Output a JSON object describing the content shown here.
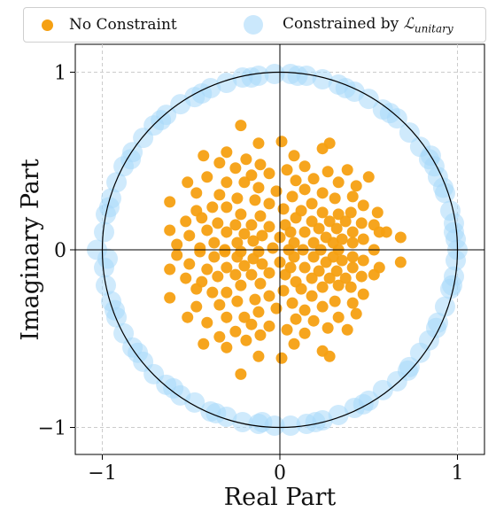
{
  "legend": {
    "items": [
      {
        "label": "No Constraint",
        "color": "#f5a012"
      },
      {
        "label_main": "Constrained by ",
        "label_script": "ℒ",
        "label_sub": "unitary",
        "color": "#a8d8fa"
      }
    ]
  },
  "chart_data": {
    "type": "scatter",
    "xlabel": "Real Part",
    "ylabel": "Imaginary Part",
    "xlim": [
      -1.15,
      1.15
    ],
    "ylim": [
      -1.15,
      1.15
    ],
    "xticks": [
      -1,
      0,
      1
    ],
    "yticks": [
      -1,
      0,
      1
    ],
    "xtick_labels": [
      "−1",
      "0",
      "1"
    ],
    "ytick_labels": [
      "−1",
      "0",
      "1"
    ],
    "grid": true,
    "legend_position": "top",
    "unit_circle": true,
    "series": [
      {
        "name": "No Constraint",
        "color": "#f5a012",
        "marker_size": "small",
        "points": [
          [
            -0.22,
            0.7
          ],
          [
            -0.12,
            0.6
          ],
          [
            0.01,
            0.61
          ],
          [
            0.28,
            0.6
          ],
          [
            0.24,
            0.57
          ],
          [
            0.08,
            0.53
          ],
          [
            -0.3,
            0.55
          ],
          [
            -0.43,
            0.53
          ],
          [
            -0.19,
            0.51
          ],
          [
            -0.11,
            0.48
          ],
          [
            -0.34,
            0.49
          ],
          [
            -0.25,
            0.46
          ],
          [
            0.14,
            0.47
          ],
          [
            0.27,
            0.44
          ],
          [
            0.38,
            0.45
          ],
          [
            0.04,
            0.45
          ],
          [
            -0.06,
            0.43
          ],
          [
            -0.16,
            0.42
          ],
          [
            -0.2,
            0.38
          ],
          [
            -0.41,
            0.41
          ],
          [
            -0.52,
            0.38
          ],
          [
            -0.3,
            0.38
          ],
          [
            0.09,
            0.39
          ],
          [
            0.19,
            0.4
          ],
          [
            0.33,
            0.38
          ],
          [
            0.5,
            0.41
          ],
          [
            0.43,
            0.36
          ],
          [
            -0.12,
            0.35
          ],
          [
            -0.02,
            0.33
          ],
          [
            0.14,
            0.34
          ],
          [
            0.24,
            0.32
          ],
          [
            -0.47,
            0.32
          ],
          [
            -0.34,
            0.31
          ],
          [
            -0.24,
            0.29
          ],
          [
            0.41,
            0.3
          ],
          [
            0.31,
            0.29
          ],
          [
            0.07,
            0.3
          ],
          [
            -0.14,
            0.28
          ],
          [
            -0.06,
            0.26
          ],
          [
            0.18,
            0.26
          ],
          [
            0.47,
            0.25
          ],
          [
            -0.62,
            0.27
          ],
          [
            -0.38,
            0.24
          ],
          [
            -0.47,
            0.22
          ],
          [
            -0.3,
            0.24
          ],
          [
            0.02,
            0.23
          ],
          [
            0.12,
            0.22
          ],
          [
            0.24,
            0.21
          ],
          [
            0.33,
            0.2
          ],
          [
            0.4,
            0.21
          ],
          [
            0.55,
            0.21
          ],
          [
            -0.22,
            0.2
          ],
          [
            -0.11,
            0.19
          ],
          [
            -0.44,
            0.18
          ],
          [
            -0.53,
            0.16
          ],
          [
            0.09,
            0.18
          ],
          [
            0.18,
            0.16
          ],
          [
            0.28,
            0.16
          ],
          [
            0.37,
            0.16
          ],
          [
            0.46,
            0.15
          ],
          [
            0.53,
            0.14
          ],
          [
            -0.35,
            0.15
          ],
          [
            -0.25,
            0.14
          ],
          [
            -0.16,
            0.14
          ],
          [
            0.03,
            0.14
          ],
          [
            -0.06,
            0.13
          ],
          [
            0.22,
            0.12
          ],
          [
            0.32,
            0.12
          ],
          [
            -0.62,
            0.11
          ],
          [
            -0.41,
            0.11
          ],
          [
            -0.3,
            0.1
          ],
          [
            -0.2,
            0.09
          ],
          [
            0.06,
            0.1
          ],
          [
            0.14,
            0.1
          ],
          [
            0.41,
            0.1
          ],
          [
            0.56,
            0.1
          ],
          [
            0.6,
            0.1
          ],
          [
            -0.51,
            0.08
          ],
          [
            -0.1,
            0.08
          ],
          [
            0.0,
            0.07
          ],
          [
            0.26,
            0.07
          ],
          [
            0.35,
            0.06
          ],
          [
            0.47,
            0.06
          ],
          [
            0.68,
            0.07
          ],
          [
            -0.37,
            0.04
          ],
          [
            -0.24,
            0.04
          ],
          [
            -0.15,
            0.05
          ],
          [
            -0.58,
            0.03
          ],
          [
            0.08,
            0.04
          ],
          [
            0.19,
            0.04
          ],
          [
            0.3,
            0.04
          ],
          [
            0.41,
            0.04
          ],
          [
            -0.45,
            0.01
          ],
          [
            -0.31,
            0.0
          ],
          [
            -0.04,
            0.01
          ],
          [
            0.05,
            0.0
          ],
          [
            0.13,
            0.0
          ],
          [
            0.23,
            0.0
          ],
          [
            0.33,
            0.0
          ],
          [
            0.53,
            0.0
          ],
          [
            -0.22,
            -0.01
          ],
          [
            -0.12,
            -0.01
          ],
          [
            -0.45,
            -0.01
          ],
          [
            -0.31,
            -0.01
          ],
          [
            -0.58,
            -0.03
          ],
          [
            0.08,
            -0.04
          ],
          [
            0.19,
            -0.04
          ],
          [
            0.3,
            -0.04
          ],
          [
            0.41,
            -0.04
          ],
          [
            -0.37,
            -0.04
          ],
          [
            -0.24,
            -0.04
          ],
          [
            -0.15,
            -0.05
          ],
          [
            -0.51,
            -0.08
          ],
          [
            -0.1,
            -0.08
          ],
          [
            0.0,
            -0.07
          ],
          [
            0.26,
            -0.07
          ],
          [
            0.35,
            -0.06
          ],
          [
            0.47,
            -0.06
          ],
          [
            0.68,
            -0.07
          ],
          [
            -0.62,
            -0.11
          ],
          [
            -0.41,
            -0.11
          ],
          [
            -0.3,
            -0.1
          ],
          [
            -0.2,
            -0.09
          ],
          [
            0.06,
            -0.1
          ],
          [
            0.14,
            -0.1
          ],
          [
            0.41,
            -0.1
          ],
          [
            0.56,
            -0.1
          ],
          [
            -0.35,
            -0.15
          ],
          [
            -0.25,
            -0.14
          ],
          [
            -0.16,
            -0.14
          ],
          [
            0.03,
            -0.14
          ],
          [
            -0.06,
            -0.13
          ],
          [
            0.22,
            -0.12
          ],
          [
            0.32,
            -0.12
          ],
          [
            -0.44,
            -0.18
          ],
          [
            -0.53,
            -0.16
          ],
          [
            0.09,
            -0.18
          ],
          [
            0.18,
            -0.16
          ],
          [
            0.28,
            -0.16
          ],
          [
            0.37,
            -0.16
          ],
          [
            0.46,
            -0.15
          ],
          [
            0.53,
            -0.14
          ],
          [
            -0.22,
            -0.2
          ],
          [
            -0.11,
            -0.19
          ],
          [
            0.02,
            -0.23
          ],
          [
            0.12,
            -0.22
          ],
          [
            0.24,
            -0.21
          ],
          [
            0.33,
            -0.2
          ],
          [
            0.4,
            -0.21
          ],
          [
            -0.38,
            -0.24
          ],
          [
            -0.47,
            -0.22
          ],
          [
            -0.3,
            -0.24
          ],
          [
            -0.14,
            -0.28
          ],
          [
            -0.06,
            -0.26
          ],
          [
            0.18,
            -0.26
          ],
          [
            0.47,
            -0.25
          ],
          [
            -0.62,
            -0.27
          ],
          [
            -0.47,
            -0.32
          ],
          [
            -0.34,
            -0.31
          ],
          [
            -0.24,
            -0.29
          ],
          [
            0.41,
            -0.3
          ],
          [
            0.31,
            -0.29
          ],
          [
            0.07,
            -0.3
          ],
          [
            -0.12,
            -0.35
          ],
          [
            -0.02,
            -0.33
          ],
          [
            0.14,
            -0.34
          ],
          [
            0.24,
            -0.32
          ],
          [
            -0.2,
            -0.38
          ],
          [
            -0.52,
            -0.38
          ],
          [
            -0.41,
            -0.41
          ],
          [
            -0.3,
            -0.38
          ],
          [
            0.09,
            -0.39
          ],
          [
            0.19,
            -0.4
          ],
          [
            0.33,
            -0.38
          ],
          [
            0.43,
            -0.36
          ],
          [
            -0.16,
            -0.42
          ],
          [
            -0.06,
            -0.43
          ],
          [
            0.04,
            -0.45
          ],
          [
            0.14,
            -0.47
          ],
          [
            0.27,
            -0.44
          ],
          [
            0.38,
            -0.45
          ],
          [
            -0.25,
            -0.46
          ],
          [
            -0.11,
            -0.48
          ],
          [
            -0.34,
            -0.49
          ],
          [
            -0.19,
            -0.51
          ],
          [
            0.08,
            -0.53
          ],
          [
            -0.3,
            -0.55
          ],
          [
            -0.43,
            -0.53
          ],
          [
            0.24,
            -0.57
          ],
          [
            0.28,
            -0.6
          ],
          [
            0.01,
            -0.61
          ],
          [
            -0.12,
            -0.6
          ],
          [
            -0.22,
            -0.7
          ]
        ]
      },
      {
        "name": "Constrained by ℒunitary",
        "color": "#a8d8fa",
        "marker_size": "large",
        "points": [
          [
            1.0,
            0.0
          ],
          [
            0.99,
            0.06
          ],
          [
            0.98,
            0.15
          ],
          [
            0.96,
            0.22
          ],
          [
            0.93,
            0.32
          ],
          [
            0.89,
            0.41
          ],
          [
            0.84,
            0.51
          ],
          [
            0.79,
            0.58
          ],
          [
            0.73,
            0.66
          ],
          [
            0.66,
            0.74
          ],
          [
            0.58,
            0.79
          ],
          [
            0.5,
            0.85
          ],
          [
            0.42,
            0.89
          ],
          [
            0.33,
            0.93
          ],
          [
            0.24,
            0.96
          ],
          [
            0.15,
            0.98
          ],
          [
            0.06,
            0.99
          ],
          [
            -0.03,
            0.99
          ],
          [
            -0.12,
            0.98
          ],
          [
            -0.21,
            0.97
          ],
          [
            -0.3,
            0.94
          ],
          [
            -0.39,
            0.91
          ],
          [
            -0.48,
            0.86
          ],
          [
            -0.56,
            0.82
          ],
          [
            -0.64,
            0.76
          ],
          [
            -0.71,
            0.7
          ],
          [
            -0.77,
            0.63
          ],
          [
            -0.83,
            0.55
          ],
          [
            -0.88,
            0.47
          ],
          [
            -0.92,
            0.38
          ],
          [
            -0.95,
            0.29
          ],
          [
            -0.98,
            0.2
          ],
          [
            -0.99,
            0.1
          ],
          [
            -1.03,
            0.0
          ],
          [
            -0.99,
            -0.1
          ],
          [
            -0.98,
            -0.2
          ],
          [
            -0.95,
            -0.29
          ],
          [
            -0.92,
            -0.38
          ],
          [
            -0.88,
            -0.47
          ],
          [
            -0.83,
            -0.55
          ],
          [
            -0.77,
            -0.63
          ],
          [
            -0.71,
            -0.7
          ],
          [
            -0.64,
            -0.76
          ],
          [
            -0.56,
            -0.82
          ],
          [
            -0.48,
            -0.86
          ],
          [
            -0.39,
            -0.91
          ],
          [
            -0.3,
            -0.94
          ],
          [
            -0.21,
            -0.97
          ],
          [
            -0.12,
            -0.98
          ],
          [
            -0.03,
            -0.99
          ],
          [
            0.06,
            -0.99
          ],
          [
            0.15,
            -0.98
          ],
          [
            0.24,
            -0.96
          ],
          [
            0.33,
            -0.93
          ],
          [
            0.42,
            -0.89
          ],
          [
            0.5,
            -0.85
          ],
          [
            0.58,
            -0.79
          ],
          [
            0.66,
            -0.74
          ],
          [
            0.73,
            -0.66
          ],
          [
            0.79,
            -0.58
          ],
          [
            0.84,
            -0.51
          ],
          [
            0.89,
            -0.41
          ],
          [
            0.93,
            -0.32
          ],
          [
            0.96,
            -0.22
          ],
          [
            0.98,
            -0.15
          ],
          [
            0.99,
            -0.06
          ],
          [
            0.85,
            0.53
          ],
          [
            0.92,
            0.35
          ],
          [
            0.98,
            0.1
          ],
          [
            0.97,
            -0.2
          ],
          [
            0.88,
            -0.44
          ],
          [
            0.72,
            -0.68
          ],
          [
            0.47,
            -0.87
          ],
          [
            0.2,
            -0.97
          ],
          [
            -0.1,
            -0.97
          ],
          [
            -0.36,
            -0.92
          ],
          [
            -0.6,
            -0.78
          ],
          [
            -0.8,
            -0.58
          ],
          [
            -0.93,
            -0.34
          ],
          [
            -0.97,
            -0.05
          ],
          [
            -0.96,
            0.24
          ],
          [
            -0.84,
            0.51
          ],
          [
            -0.67,
            0.73
          ],
          [
            -0.44,
            0.88
          ],
          [
            -0.16,
            0.97
          ],
          [
            0.1,
            0.98
          ],
          [
            0.37,
            0.91
          ],
          [
            0.62,
            0.77
          ],
          [
            0.87,
            0.47
          ]
        ]
      }
    ]
  }
}
